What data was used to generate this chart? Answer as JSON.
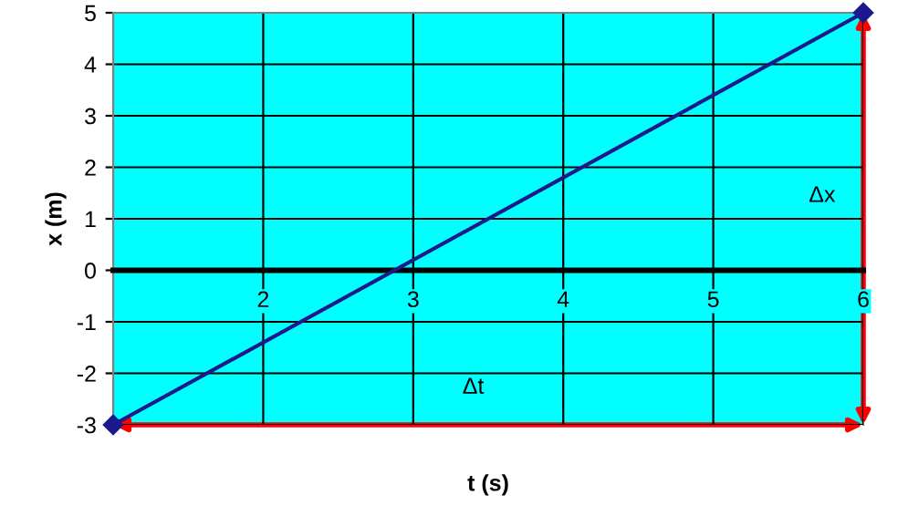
{
  "chart_data": {
    "type": "line",
    "xlabel": "t (s)",
    "ylabel": "x (m)",
    "series": [
      {
        "x": [
          1,
          6
        ],
        "values": [
          -3,
          5
        ],
        "color": "#1a1a8c"
      }
    ],
    "xlim": [
      1,
      6
    ],
    "ylim": [
      -3,
      5
    ],
    "xticks": [
      2,
      3,
      4,
      5,
      6
    ],
    "yticks": [
      -3,
      -2,
      -1,
      0,
      1,
      2,
      3,
      4,
      5
    ],
    "grid": true,
    "marker": "diamond",
    "line_style": "solid",
    "annotations": [
      "Δt",
      "Δx"
    ]
  }
}
